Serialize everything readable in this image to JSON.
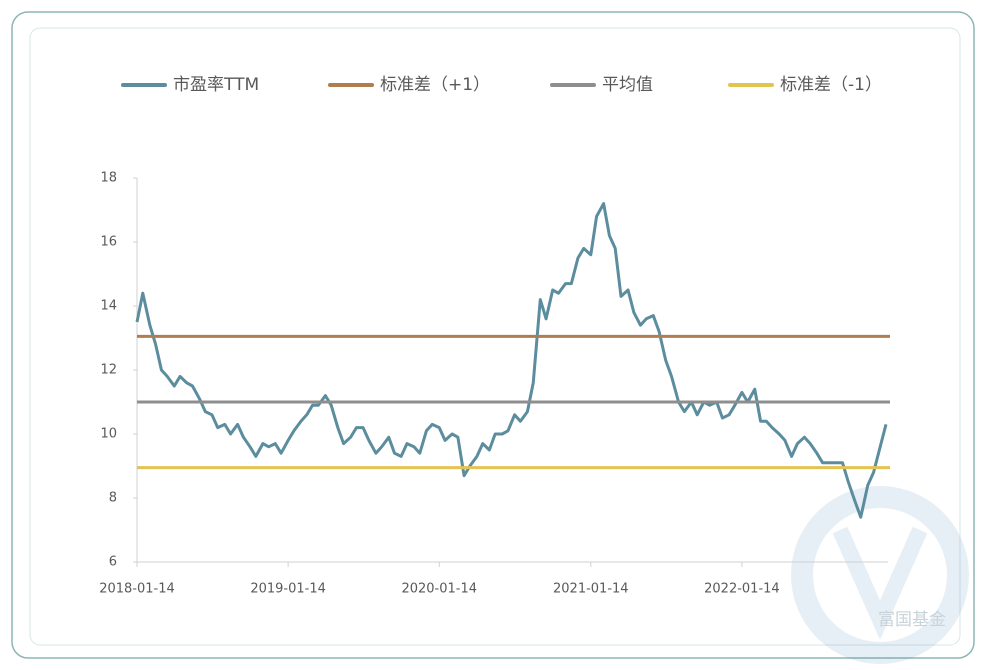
{
  "chart_data": {
    "type": "line",
    "watermark": "富国基金",
    "x": [
      "2018-01-14",
      "2018-01-28",
      "2018-02-14",
      "2018-02-28",
      "2018-03-14",
      "2018-03-28",
      "2018-04-14",
      "2018-04-28",
      "2018-05-14",
      "2018-05-28",
      "2018-06-14",
      "2018-06-28",
      "2018-07-14",
      "2018-07-28",
      "2018-08-14",
      "2018-08-28",
      "2018-09-14",
      "2018-09-28",
      "2018-10-14",
      "2018-10-28",
      "2018-11-14",
      "2018-11-28",
      "2018-12-14",
      "2018-12-28",
      "2019-01-14",
      "2019-01-28",
      "2019-02-14",
      "2019-02-28",
      "2019-03-14",
      "2019-03-28",
      "2019-04-14",
      "2019-04-28",
      "2019-05-14",
      "2019-05-28",
      "2019-06-14",
      "2019-06-28",
      "2019-07-14",
      "2019-07-28",
      "2019-08-14",
      "2019-08-28",
      "2019-09-14",
      "2019-09-28",
      "2019-10-14",
      "2019-10-28",
      "2019-11-14",
      "2019-11-28",
      "2019-12-14",
      "2019-12-28",
      "2020-01-14",
      "2020-01-28",
      "2020-02-14",
      "2020-02-28",
      "2020-03-14",
      "2020-03-28",
      "2020-04-14",
      "2020-04-28",
      "2020-05-14",
      "2020-05-28",
      "2020-06-14",
      "2020-06-28",
      "2020-07-14",
      "2020-07-28",
      "2020-08-14",
      "2020-08-28",
      "2020-09-14",
      "2020-09-28",
      "2020-10-14",
      "2020-10-28",
      "2020-11-14",
      "2020-11-28",
      "2020-12-14",
      "2020-12-28",
      "2021-01-14",
      "2021-01-28",
      "2021-02-14",
      "2021-02-28",
      "2021-03-14",
      "2021-03-28",
      "2021-04-14",
      "2021-04-28",
      "2021-05-14",
      "2021-05-28",
      "2021-06-14",
      "2021-06-28",
      "2021-07-14",
      "2021-07-28",
      "2021-08-14",
      "2021-08-28",
      "2021-09-14",
      "2021-09-28",
      "2021-10-14",
      "2021-10-28",
      "2021-11-14",
      "2021-11-28",
      "2021-12-14",
      "2021-12-28",
      "2022-01-14",
      "2022-01-28",
      "2022-02-14",
      "2022-02-28",
      "2022-03-14",
      "2022-03-28",
      "2022-04-14",
      "2022-04-28",
      "2022-05-14",
      "2022-05-28",
      "2022-06-14",
      "2022-06-28",
      "2022-07-14",
      "2022-07-28",
      "2022-08-14",
      "2022-08-28",
      "2022-09-14",
      "2022-09-28",
      "2022-10-14",
      "2022-10-28",
      "2022-11-14",
      "2022-11-28",
      "2022-12-14",
      "2022-12-28"
    ],
    "series": [
      {
        "name": "市盈率TTM",
        "color": "#5b8d9e",
        "values": [
          13.5,
          14.4,
          13.4,
          12.8,
          12.0,
          11.8,
          11.5,
          11.8,
          11.6,
          11.5,
          11.1,
          10.7,
          10.6,
          10.2,
          10.3,
          10.0,
          10.3,
          9.9,
          9.6,
          9.3,
          9.7,
          9.6,
          9.7,
          9.4,
          9.8,
          10.1,
          10.4,
          10.6,
          10.9,
          10.9,
          11.2,
          10.9,
          10.2,
          9.7,
          9.9,
          10.2,
          10.2,
          9.8,
          9.4,
          9.6,
          9.9,
          9.4,
          9.3,
          9.7,
          9.6,
          9.4,
          10.1,
          10.3,
          10.2,
          9.8,
          10.0,
          9.9,
          8.7,
          9.0,
          9.3,
          9.7,
          9.5,
          10.0,
          10.0,
          10.1,
          10.6,
          10.4,
          10.7,
          11.6,
          14.2,
          13.6,
          14.5,
          14.4,
          14.7,
          14.7,
          15.5,
          15.8,
          15.6,
          16.8,
          17.2,
          16.2,
          15.8,
          14.3,
          14.5,
          13.8,
          13.4,
          13.6,
          13.7,
          13.2,
          12.3,
          11.8,
          11.0,
          10.7,
          11.0,
          10.6,
          11.0,
          10.9,
          11.0,
          10.5,
          10.6,
          10.9,
          11.3,
          11.0,
          11.4,
          10.4,
          10.4,
          10.2,
          10.0,
          9.8,
          9.3,
          9.7,
          9.9,
          9.7,
          9.4,
          9.1,
          9.1,
          9.1,
          9.1,
          8.5,
          7.9,
          7.4,
          8.4,
          8.8,
          9.6,
          10.3
        ]
      },
      {
        "name": "标准差（+1）",
        "color": "#b07d4e",
        "value": 13.05
      },
      {
        "name": "平均值",
        "color": "#8e8e8e",
        "value": 11.0
      },
      {
        "name": "标准差（-1）",
        "color": "#e3c352",
        "value": 8.95
      }
    ],
    "xlim": [
      "2018-01-14",
      "2022-12-28"
    ],
    "xticks": [
      "2018-01-14",
      "2019-01-14",
      "2020-01-14",
      "2021-01-14",
      "2022-01-14"
    ],
    "ylim": [
      6,
      18
    ],
    "yticks": [
      6,
      8,
      10,
      12,
      14,
      16,
      18
    ]
  }
}
